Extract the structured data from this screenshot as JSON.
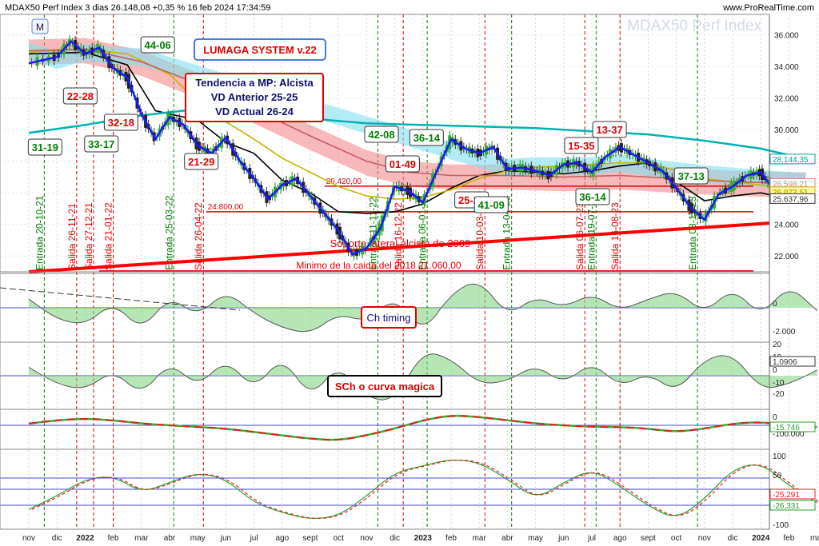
{
  "header": {
    "title": "MDAX50 Perf Index 3 dias 26.148,08 +0,35 % 16 feb 2024 17:34:59",
    "site": "www.ProRealTime.com",
    "watermark": "MDAX50 Perf Index",
    "mark_m": "M"
  },
  "chart_data": {
    "type": "line",
    "title": "MDAX50 Perf Index 3 dias",
    "x_labels": [
      "nov",
      "dic",
      "2022",
      "feb",
      "mar",
      "abr",
      "may",
      "jun",
      "jul",
      "ago",
      "sept",
      "oct",
      "nov",
      "dic",
      "2023",
      "feb",
      "mar",
      "abr",
      "may",
      "jun",
      "jul",
      "ago",
      "sept",
      "oct",
      "nov",
      "dic",
      "2024",
      "feb",
      "mar"
    ],
    "y_ticks": [
      "36.000",
      "34.000",
      "32.000",
      "30.000",
      "28.000",
      "26.000",
      "24.000",
      "22.000"
    ],
    "ylim": [
      21000,
      37300
    ],
    "price_series": {
      "name": "MDAX50",
      "points": [
        [
          0,
          34200
        ],
        [
          1,
          34600
        ],
        [
          1.5,
          35600
        ],
        [
          2,
          34800
        ],
        [
          2.5,
          35200
        ],
        [
          3,
          33900
        ],
        [
          3.5,
          33300
        ],
        [
          4,
          31000
        ],
        [
          4.5,
          29400
        ],
        [
          5,
          30800
        ],
        [
          5.5,
          30300
        ],
        [
          6,
          29000
        ],
        [
          6.5,
          28500
        ],
        [
          7,
          29500
        ],
        [
          7.5,
          28000
        ],
        [
          8,
          26900
        ],
        [
          8.5,
          25600
        ],
        [
          9,
          26500
        ],
        [
          9.5,
          26900
        ],
        [
          10,
          25800
        ],
        [
          10.5,
          24700
        ],
        [
          11,
          23600
        ],
        [
          11.5,
          22100
        ],
        [
          12,
          22500
        ],
        [
          12.5,
          23800
        ],
        [
          13,
          26400
        ],
        [
          13.5,
          26100
        ],
        [
          14,
          25400
        ],
        [
          14.5,
          27400
        ],
        [
          15,
          29400
        ],
        [
          15.5,
          28800
        ],
        [
          16,
          28500
        ],
        [
          16.5,
          28900
        ],
        [
          17,
          27500
        ],
        [
          17.5,
          27600
        ],
        [
          18,
          27400
        ],
        [
          18.5,
          27100
        ],
        [
          19,
          27800
        ],
        [
          19.5,
          27900
        ],
        [
          20,
          27300
        ],
        [
          20.5,
          28300
        ],
        [
          21,
          28900
        ],
        [
          21.5,
          28400
        ],
        [
          22,
          27900
        ],
        [
          22.5,
          27400
        ],
        [
          23,
          26300
        ],
        [
          23.5,
          25100
        ],
        [
          24,
          24300
        ],
        [
          24.5,
          25900
        ],
        [
          25,
          26400
        ],
        [
          25.5,
          27100
        ],
        [
          26,
          27300
        ],
        [
          26.5,
          26100
        ],
        [
          27,
          26400
        ],
        [
          27.6,
          26148
        ]
      ]
    },
    "moving_averages": [
      {
        "name": "MA corta",
        "color": "#000000",
        "points": [
          [
            0,
            34800
          ],
          [
            2,
            34900
          ],
          [
            3.5,
            34100
          ],
          [
            4.5,
            31200
          ],
          [
            6,
            30600
          ],
          [
            7,
            29200
          ],
          [
            8,
            28500
          ],
          [
            9,
            26800
          ],
          [
            10,
            26000
          ],
          [
            11,
            24800
          ],
          [
            12,
            24700
          ],
          [
            13,
            24800
          ],
          [
            14,
            25300
          ],
          [
            15,
            26300
          ],
          [
            16,
            27100
          ],
          [
            17,
            27400
          ],
          [
            18,
            27300
          ],
          [
            19,
            27200
          ],
          [
            20,
            27400
          ],
          [
            21,
            27700
          ],
          [
            22,
            27900
          ],
          [
            23,
            26700
          ],
          [
            24,
            25500
          ],
          [
            25,
            25800
          ],
          [
            26,
            26000
          ],
          [
            27,
            25600
          ],
          [
            27.6,
            25640
          ]
        ]
      },
      {
        "name": "MA media",
        "color": "#c8b400",
        "points": [
          [
            0,
            34900
          ],
          [
            2,
            35100
          ],
          [
            3.5,
            34800
          ],
          [
            5,
            33500
          ],
          [
            6,
            31800
          ],
          [
            7,
            30500
          ],
          [
            8,
            29400
          ],
          [
            9,
            28200
          ],
          [
            10,
            27300
          ],
          [
            11,
            26400
          ],
          [
            12,
            25800
          ],
          [
            13,
            25600
          ],
          [
            14,
            25700
          ],
          [
            15,
            26200
          ],
          [
            16,
            26900
          ],
          [
            17,
            27400
          ],
          [
            18,
            27600
          ],
          [
            19,
            27700
          ],
          [
            20,
            27800
          ],
          [
            21,
            27900
          ],
          [
            22,
            27900
          ],
          [
            23,
            27400
          ],
          [
            24,
            26900
          ],
          [
            25,
            26700
          ],
          [
            26,
            26500
          ],
          [
            27,
            26300
          ],
          [
            27.6,
            26260
          ]
        ]
      },
      {
        "name": "MA larga",
        "color": "#00b3b3",
        "points": [
          [
            0,
            29800
          ],
          [
            2,
            30300
          ],
          [
            4,
            30900
          ],
          [
            6,
            31300
          ],
          [
            8,
            31200
          ],
          [
            10,
            30700
          ],
          [
            12,
            30400
          ],
          [
            14,
            30300
          ],
          [
            16,
            30200
          ],
          [
            18,
            30100
          ],
          [
            20,
            29900
          ],
          [
            22,
            29700
          ],
          [
            24,
            29300
          ],
          [
            26,
            28800
          ],
          [
            27.6,
            28144
          ]
        ]
      },
      {
        "name": "MA roja",
        "color": "#c66060",
        "points": [
          [
            0,
            35000
          ],
          [
            2,
            35100
          ],
          [
            4,
            34300
          ],
          [
            6,
            32900
          ],
          [
            8,
            31300
          ],
          [
            10,
            29600
          ],
          [
            12,
            28000
          ],
          [
            13.5,
            27300
          ],
          [
            15,
            27100
          ],
          [
            17,
            27100
          ],
          [
            19,
            27000
          ],
          [
            21,
            27100
          ],
          [
            23,
            26900
          ],
          [
            25,
            26700
          ],
          [
            27.6,
            26598
          ]
        ]
      }
    ],
    "price_labels": [
      "28.144,35",
      "26.598,21",
      "26.072,51",
      "25.637,96"
    ],
    "horizontal_levels": [
      {
        "label": "26.420,00",
        "value": 26420
      },
      {
        "label": "24.800,00",
        "value": 24800
      },
      {
        "label": "Minimo de la caida del 2018   21.060,00",
        "value": 21060
      }
    ],
    "trend_line": {
      "label": "Soporte lateral alcista de 2009",
      "from": [
        0,
        21000
      ],
      "to": [
        27.6,
        24080
      ]
    },
    "signals": [
      {
        "label": "Entrada 20-10-21",
        "x": 0.55,
        "kind": "entrada"
      },
      {
        "label": "Salida 26-11-21",
        "x": 1.7,
        "kind": "salida"
      },
      {
        "label": "Salida 27-12-21",
        "x": 2.3,
        "kind": "salida"
      },
      {
        "label": "Salida 21-01-22",
        "x": 3.0,
        "kind": "salida"
      },
      {
        "label": "Entrada 25-03-22",
        "x": 5.15,
        "kind": "entrada"
      },
      {
        "label": "Salida 26-04-22",
        "x": 6.2,
        "kind": "salida"
      },
      {
        "label": "Entrada 11-11-22",
        "x": 12.4,
        "kind": "entrada"
      },
      {
        "label": "Salida 16-12-22",
        "x": 13.3,
        "kind": "salida"
      },
      {
        "label": "Entrada 06-01-23",
        "x": 14.15,
        "kind": "entrada"
      },
      {
        "label": "Salida 10-03-23",
        "x": 16.2,
        "kind": "salida"
      },
      {
        "label": "Entrada 13-04-23",
        "x": 17.15,
        "kind": "entrada"
      },
      {
        "label": "Salida 06-07-23",
        "x": 19.75,
        "kind": "salida"
      },
      {
        "label": "Entrada 19-07-23",
        "x": 20.15,
        "kind": "entrada"
      },
      {
        "label": "Salida 16-08-23",
        "x": 21.0,
        "kind": "salida"
      },
      {
        "label": "Entrada 08-11-23",
        "x": 23.75,
        "kind": "entrada"
      }
    ],
    "boxes": [
      {
        "text": "44-06",
        "color": "#008000"
      },
      {
        "text": "22-28",
        "color": "#e00000"
      },
      {
        "text": "32-18",
        "color": "#e00000"
      },
      {
        "text": "33-17",
        "color": "#008000"
      },
      {
        "text": "31-19",
        "color": "#008000"
      },
      {
        "text": "21-29",
        "color": "#e00000"
      },
      {
        "text": "42-08",
        "color": "#008000"
      },
      {
        "text": "01-49",
        "color": "#e00000"
      },
      {
        "text": "36-14",
        "color": "#008000"
      },
      {
        "text": "25-25",
        "color": "#e00000"
      },
      {
        "text": "41-09",
        "color": "#008000"
      },
      {
        "text": "15-35",
        "color": "#e00000"
      },
      {
        "text": "13-37",
        "color": "#e00000"
      },
      {
        "text": "36-14",
        "color": "#008000"
      },
      {
        "text": "37-13",
        "color": "#008000"
      }
    ],
    "system_title": "LUMAGA SYSTEM v.22",
    "trend_box": [
      "Tendencia a MP: Alcista",
      "VD Anterior 25-25",
      "VD Actual 26-24"
    ]
  },
  "panels": {
    "ch_timing": {
      "label": "Ch timing",
      "ticks": [
        "0",
        "-2.000"
      ],
      "values": [
        0.3,
        -0.4,
        -0.6,
        0.2,
        -0.8,
        0.4,
        -0.3,
        0.6,
        -0.2,
        -0.7,
        -0.9,
        -0.2,
        -0.5,
        0.4,
        -0.9,
        0.5,
        1.0,
        -0.3,
        0.4,
        0.0,
        0.5,
        -0.1,
        0.3,
        0.6,
        -0.2,
        0.7,
        -0.3,
        0.8,
        -0.1
      ]
    },
    "sch": {
      "label": "SCh o curva magica",
      "ticks": [
        "20",
        "10",
        "0",
        "-10",
        "-20"
      ],
      "readout": "1,0906",
      "values": [
        0.3,
        -0.3,
        -0.5,
        0.2,
        -0.7,
        0.5,
        -0.4,
        0.6,
        -0.5,
        0.7,
        -0.8,
        0.4,
        -0.8,
        -0.9,
        0.9,
        0.6,
        -0.3,
        -0.2,
        0.4,
        -0.3,
        0.5,
        -0.4,
        0.1,
        -0.6,
        0.6,
        0.8,
        -0.5,
        -0.3,
        0.2
      ]
    },
    "osc3": {
      "ticks": [
        "0",
        "-100.000"
      ],
      "readout": "-15.746",
      "values": [
        0.1,
        0.3,
        0.4,
        0.3,
        0.1,
        0.0,
        -0.1,
        -0.2,
        -0.4,
        -0.6,
        -0.8,
        -0.9,
        -0.6,
        -0.2,
        0.3,
        0.6,
        0.5,
        0.3,
        0.1,
        0.0,
        -0.1,
        -0.1,
        -0.2,
        -0.4,
        -0.2,
        0.1,
        0.2,
        0.0,
        -0.1
      ]
    },
    "osc4": {
      "ticks": [
        "100",
        "50",
        "0",
        "-50",
        "-100"
      ],
      "readouts": [
        "-25,291",
        "-26,331"
      ],
      "values": [
        -0.6,
        -0.2,
        0.3,
        0.4,
        -0.1,
        0.2,
        0.5,
        0.3,
        -0.4,
        -0.7,
        -0.9,
        -0.8,
        -0.2,
        0.5,
        0.7,
        0.9,
        0.8,
        0.3,
        -0.3,
        0.2,
        0.6,
        0.1,
        -0.5,
        -0.9,
        -0.3,
        0.6,
        0.8,
        0.1,
        -0.4
      ]
    }
  },
  "colors": {
    "entrada": "#008000",
    "salida": "#e00000",
    "bull": "#86d686",
    "bear": "#e88a8a",
    "cloud_red": "#f08080",
    "cloud_cyan": "#80e0f0",
    "trend_line": "#ff0000",
    "price_line": "#1a1aff"
  }
}
